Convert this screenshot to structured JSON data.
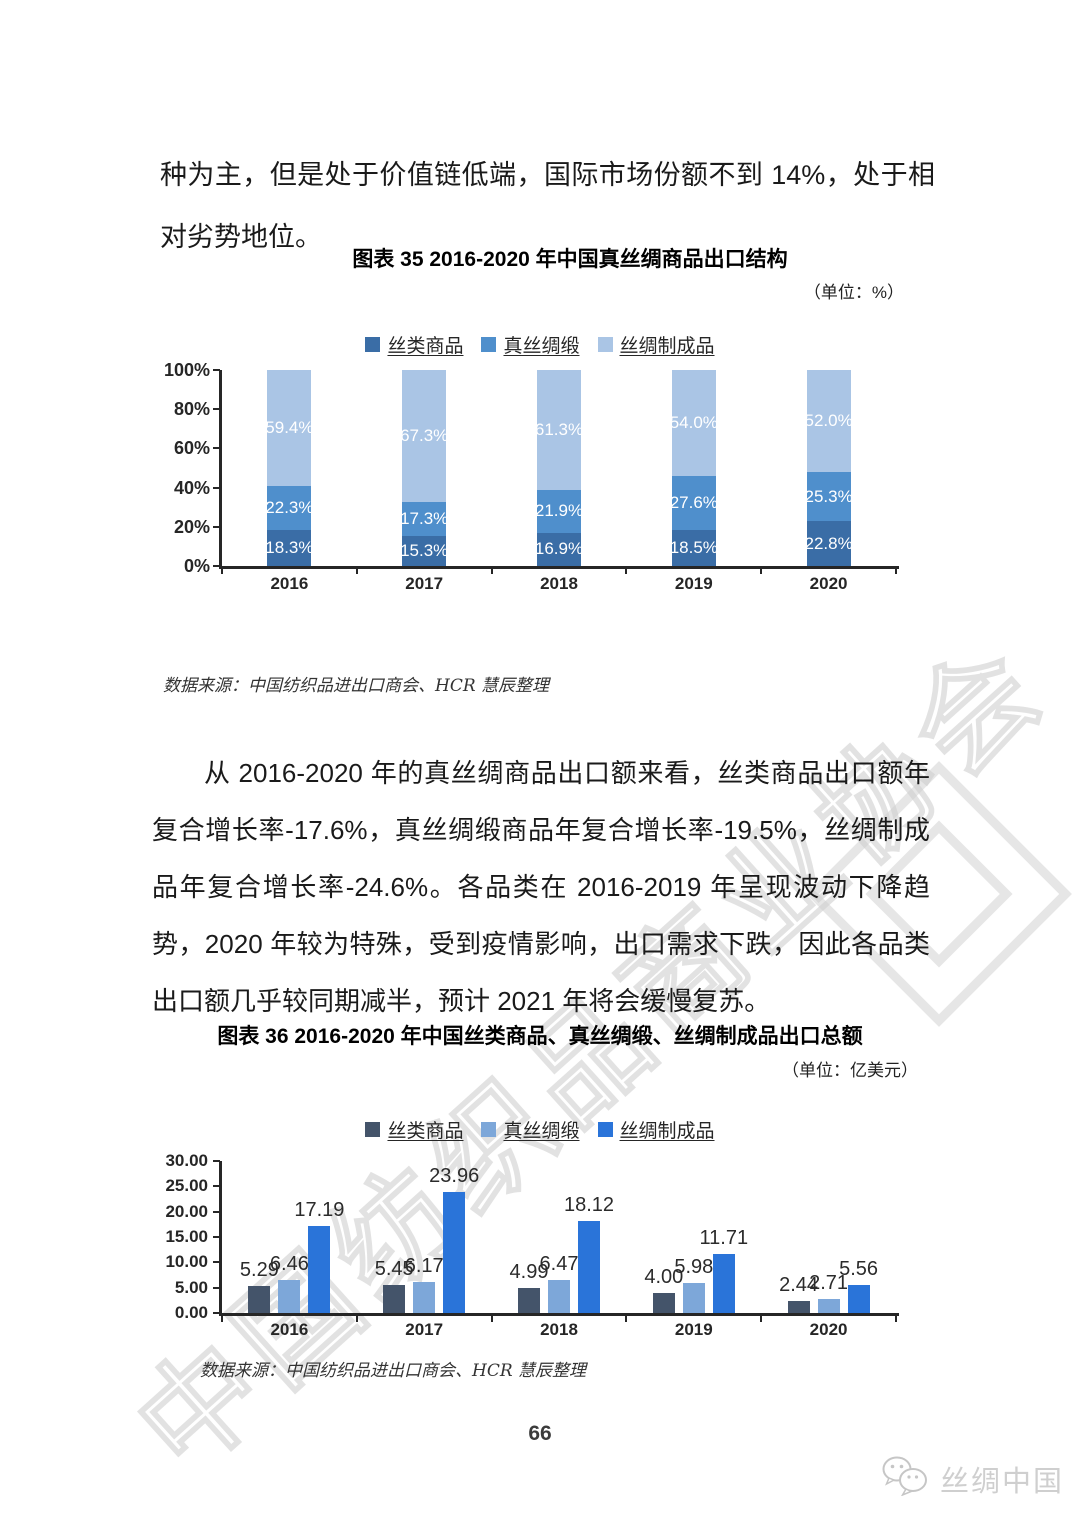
{
  "paragraph_top": "种为主，但是处于价值链低端，国际市场份额不到 14%，处于相对劣势地位。",
  "paragraph_main": "从 2016-2020 年的真丝绸商品出口额来看，丝类商品出口额年复合增长率-17.6%，真丝绸缎商品年复合增长率-19.5%，丝绸制成品年复合增长率-24.6%。各品类在 2016-2019 年呈现波动下降趋势，2020 年较为特殊，受到疫情影响，出口需求下跌，因此各品类出口额几乎较同期减半，预计 2021 年将会缓慢复苏。",
  "source_note": "数据来源：中国纺织品进出口商会、HCR 慧辰整理",
  "watermark": "中国纺织品商业协会",
  "page_number": "66",
  "footer_logo_text": "丝绸中国",
  "footer_logo_icon": "wechat-speech-bubbles",
  "chart_data": [
    {
      "type": "bar",
      "subtype": "stacked-100",
      "title": "图表 35 2016-2020 年中国真丝绸商品出口结构",
      "unit": "（单位：%）",
      "categories": [
        "2016",
        "2017",
        "2018",
        "2019",
        "2020"
      ],
      "series": [
        {
          "name": "丝类商品",
          "color": "#3a6da6",
          "values": [
            18.3,
            15.3,
            16.9,
            18.5,
            22.8
          ]
        },
        {
          "name": "真丝绸缎",
          "color": "#4f8fcc",
          "values": [
            22.3,
            17.3,
            21.9,
            27.6,
            25.3
          ]
        },
        {
          "name": "丝绸制成品",
          "color": "#aac5e5",
          "values": [
            59.4,
            67.3,
            61.3,
            54.0,
            52.0
          ]
        }
      ],
      "y_tick_labels": [
        "100%",
        "80%",
        "60%",
        "40%",
        "20%",
        "0%"
      ],
      "ylim": [
        0,
        100
      ],
      "legend_position": "top",
      "grid": false
    },
    {
      "type": "bar",
      "subtype": "grouped",
      "title": "图表 36 2016-2020 年中国丝类商品、真丝绸缎、丝绸制成品出口总额",
      "unit": "（单位：亿美元）",
      "categories": [
        "2016",
        "2017",
        "2018",
        "2019",
        "2020"
      ],
      "series": [
        {
          "name": "丝类商品",
          "color": "#44546a",
          "values": [
            5.29,
            5.45,
            4.99,
            4.0,
            2.44
          ]
        },
        {
          "name": "真丝绸缎",
          "color": "#7da7d9",
          "values": [
            6.46,
            6.17,
            6.47,
            5.98,
            2.71
          ]
        },
        {
          "name": "丝绸制成品",
          "color": "#2a74d9",
          "values": [
            17.19,
            23.96,
            18.12,
            11.71,
            5.56
          ]
        }
      ],
      "y_tick_labels": [
        "30.00",
        "25.00",
        "20.00",
        "15.00",
        "10.00",
        "5.00",
        "0.00"
      ],
      "ylim": [
        0,
        30
      ],
      "legend_position": "top",
      "grid": false
    }
  ]
}
